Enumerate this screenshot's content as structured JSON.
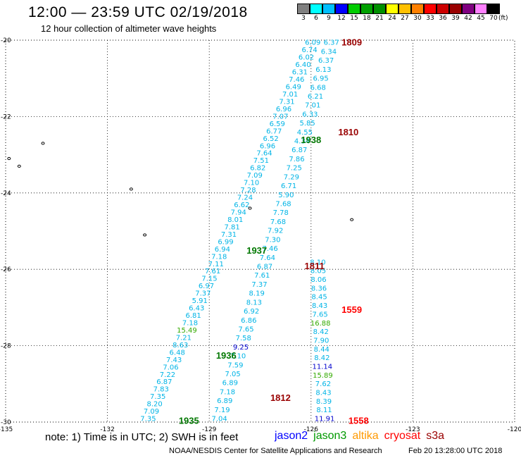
{
  "header": {
    "title": "12:00 — 23:59 UTC 02/19/2018",
    "subtitle": "12 hour collection of altimeter wave heights"
  },
  "colorbar": {
    "colors": [
      "#808080",
      "#00ffff",
      "#00bfff",
      "#0000ff",
      "#00cc00",
      "#00a000",
      "#009000",
      "#ffff00",
      "#ffc000",
      "#ff8000",
      "#ff0000",
      "#cc0000",
      "#990000",
      "#800080",
      "#ff80ff",
      "#000000"
    ],
    "labels": [
      "3",
      "6",
      "9",
      "12",
      "15",
      "18",
      "21",
      "24",
      "27",
      "30",
      "33",
      "36",
      "39",
      "42",
      "45",
      "70"
    ],
    "unit": "(ft)"
  },
  "map": {
    "lon_range": [
      -135,
      -120
    ],
    "lat_range": [
      -30,
      -20
    ],
    "x_ticks": [
      {
        "lon": -135,
        "label": "-135"
      },
      {
        "lon": -132,
        "label": "-132"
      },
      {
        "lon": -129,
        "label": "-129"
      },
      {
        "lon": -126,
        "label": "-126"
      },
      {
        "lon": -123,
        "label": "-123"
      },
      {
        "lon": -120,
        "label": "-120"
      }
    ],
    "y_ticks": [
      {
        "lat": -20,
        "label": "-20"
      },
      {
        "lat": -22,
        "label": "-22"
      },
      {
        "lat": -24,
        "label": "-24"
      },
      {
        "lat": -26,
        "label": "-26"
      },
      {
        "lat": -28,
        "label": "-28"
      },
      {
        "lat": -30,
        "label": "-30"
      }
    ],
    "tracks": [
      {
        "name": "track1",
        "start": [
          -125.95,
          -20.05
        ],
        "end": [
          -130.8,
          -29.9
        ],
        "values": [
          "6.09",
          "6.74",
          "6.02",
          "6.40",
          "6.31",
          "7.46",
          "6.49",
          "7.01",
          "7.31",
          "6.96",
          "7.07",
          "6.59",
          "6.77",
          "6.52",
          "6.96",
          "7.64",
          "7.51",
          "6.82",
          "7.09",
          "7.10",
          "7.28",
          "7.24",
          "6.62",
          "7.94",
          "8.01",
          "7.81",
          "7.31",
          "6.99",
          "6.94",
          "7.18",
          "7.11",
          "7.61",
          "7.15",
          "6.97",
          "7.37",
          "5.91",
          "6.43",
          "6.81",
          "7.18",
          "15.49",
          "7.21",
          "8.63",
          "6.48",
          "7.43",
          "7.06",
          "7.22",
          "6.87",
          "7.83",
          "7.35",
          "8.20",
          "7.09",
          "7.35"
        ]
      },
      {
        "name": "track2",
        "start": [
          -125.4,
          -20.05
        ],
        "end": [
          -128.7,
          -29.9
        ],
        "values": [
          "6.37",
          "6.34",
          "6.37",
          "6.13",
          "6.95",
          "6.68",
          "6.21",
          "7.01",
          "6.33",
          "5.85",
          "4.55",
          "4.34",
          "6.87",
          "7.86",
          "7.25",
          "7.29",
          "6.71",
          "5.90",
          "7.68",
          "7.78",
          "7.68",
          "7.92",
          "7.30",
          "7.46",
          "7.64",
          "6.87",
          "7.61",
          "7.37",
          "8.19",
          "8.13",
          "6.92",
          "6.86",
          "7.65",
          "7.58",
          "9.25",
          "7.10",
          "7.59",
          "7.05",
          "6.89",
          "7.18",
          "6.89",
          "7.19",
          "7.04"
        ]
      },
      {
        "name": "track3",
        "start": [
          -125.8,
          -25.8
        ],
        "end": [
          -125.6,
          -29.9
        ],
        "values": [
          "8.10",
          "8.05",
          "8.06",
          "8.36",
          "8.45",
          "8.43",
          "7.65",
          "16.88",
          "8.42",
          "7.90",
          "8.44",
          "8.42",
          "11.14",
          "15.89",
          "7.62",
          "8.43",
          "8.39",
          "8.11",
          "11.91"
        ]
      }
    ],
    "pass_labels": [
      {
        "text": "1809",
        "lon": -124.8,
        "lat": -20.05,
        "color": "#990000"
      },
      {
        "text": "1810",
        "lon": -124.9,
        "lat": -22.4,
        "color": "#990000"
      },
      {
        "text": "1938",
        "lon": -126.0,
        "lat": -22.6,
        "color": "#007700"
      },
      {
        "text": "1937",
        "lon": -127.6,
        "lat": -25.5,
        "color": "#007700"
      },
      {
        "text": "1811",
        "lon": -125.9,
        "lat": -25.9,
        "color": "#990000"
      },
      {
        "text": "1559",
        "lon": -124.8,
        "lat": -27.05,
        "color": "#ff0000"
      },
      {
        "text": "1936",
        "lon": -128.5,
        "lat": -28.25,
        "color": "#007700"
      },
      {
        "text": "1812",
        "lon": -126.9,
        "lat": -29.35,
        "color": "#990000"
      },
      {
        "text": "1558",
        "lon": -124.6,
        "lat": -29.95,
        "color": "#ff0000"
      },
      {
        "text": "1935",
        "lon": -129.6,
        "lat": -29.95,
        "color": "#007700"
      }
    ],
    "islands": [
      {
        "lon": -133.9,
        "lat": -22.7
      },
      {
        "lon": -134.9,
        "lat": -23.1
      },
      {
        "lon": -134.6,
        "lat": -23.3
      },
      {
        "lon": -131.3,
        "lat": -23.9
      },
      {
        "lon": -127.8,
        "lat": -24.4
      },
      {
        "lon": -124.8,
        "lat": -24.7
      },
      {
        "lon": -130.9,
        "lat": -25.1
      }
    ]
  },
  "footer": {
    "note": "note: 1) Time is in UTC; 2) SWH is in feet",
    "satellites": [
      {
        "name": "jason2",
        "color": "#0000ff"
      },
      {
        "name": "jason3",
        "color": "#009900"
      },
      {
        "name": "altika",
        "color": "#ff9900"
      },
      {
        "name": "cryosat",
        "color": "#ff0000"
      },
      {
        "name": "s3a",
        "color": "#990000"
      }
    ],
    "credit": "NOAA/NESDIS Center for Satellite Applications and Research",
    "timestamp": "Feb 20 13:28:00 UTC 2018"
  }
}
